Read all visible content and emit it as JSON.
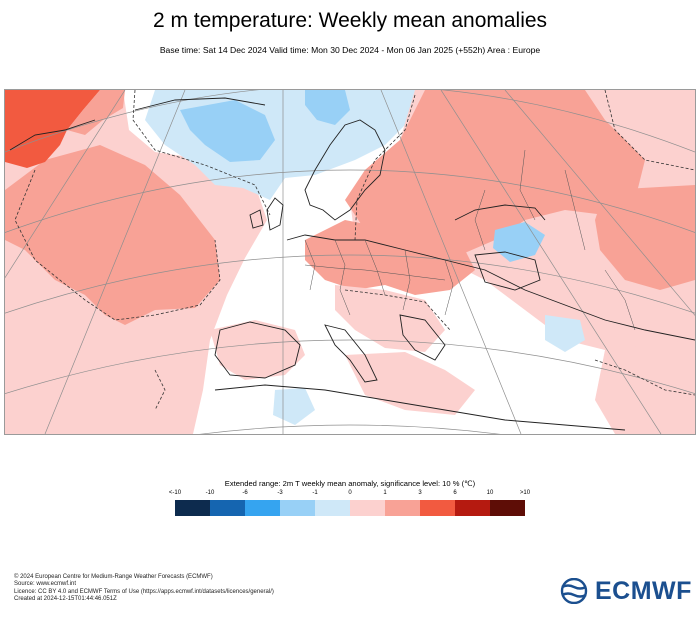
{
  "header": {
    "title": "2 m temperature: Weekly mean anomalies",
    "subtitle": "Base time: Sat 14 Dec 2024 Valid time: Mon 30 Dec 2024 - Mon 06 Jan 2025 (+552h) Area : Europe"
  },
  "legend": {
    "title": "Extended range: 2m T weekly mean anomaly, significance level: 10 % (℃)",
    "ticks": [
      "<-10",
      "-10",
      "-6",
      "-3",
      "-1",
      "0",
      "1",
      "3",
      "6",
      "10",
      ">10"
    ],
    "colors": [
      "#0d2b4e",
      "#1565b0",
      "#35a4f0",
      "#98d0f6",
      "#cfe8f8",
      "#fcd1cf",
      "#f8a296",
      "#f25a40",
      "#b51a10",
      "#5e0d06"
    ]
  },
  "map": {
    "colors": {
      "ocean": "#ffffff",
      "warm_light": "#fcd1cf",
      "warm_mid": "#f8a296",
      "warm_strong": "#f25a40",
      "cold_light": "#cfe8f8",
      "cold_mid": "#98d0f6"
    }
  },
  "footer": {
    "lines": [
      "© 2024 European Centre for Medium-Range Weather Forecasts (ECMWF)",
      "Source: www.ecmwf.int",
      "Licence: CC BY 4.0 and ECMWF Terms of Use (https://apps.ecmwf.int/datasets/licences/general/)",
      "Created at 2024-12-15T01:44:46.051Z"
    ]
  },
  "logo": {
    "text": "ECMWF"
  }
}
